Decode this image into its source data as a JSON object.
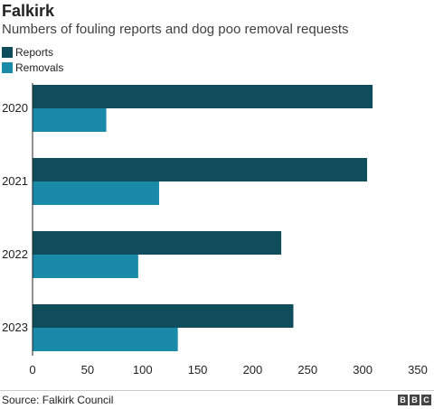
{
  "header": {
    "title": "Falkirk",
    "subtitle": "Numbers of fouling reports and dog poo removal requests"
  },
  "footer": {
    "source": "Source: Falkirk Council",
    "logo_letters": [
      "B",
      "B",
      "C"
    ]
  },
  "colors": {
    "reports": "#0f4d5c",
    "removals": "#1a8aa9"
  },
  "chart_data": {
    "type": "bar",
    "orientation": "horizontal",
    "categories": [
      "2020",
      "2021",
      "2022",
      "2023"
    ],
    "series": [
      {
        "name": "Reports",
        "values": [
          309,
          304,
          226,
          237
        ]
      },
      {
        "name": "Removals",
        "values": [
          67,
          115,
          96,
          132
        ]
      }
    ],
    "xlim": [
      0,
      350
    ],
    "xticks": [
      0,
      50,
      100,
      150,
      200,
      250,
      300,
      350
    ],
    "legend_position": "top-left",
    "grid": false
  }
}
